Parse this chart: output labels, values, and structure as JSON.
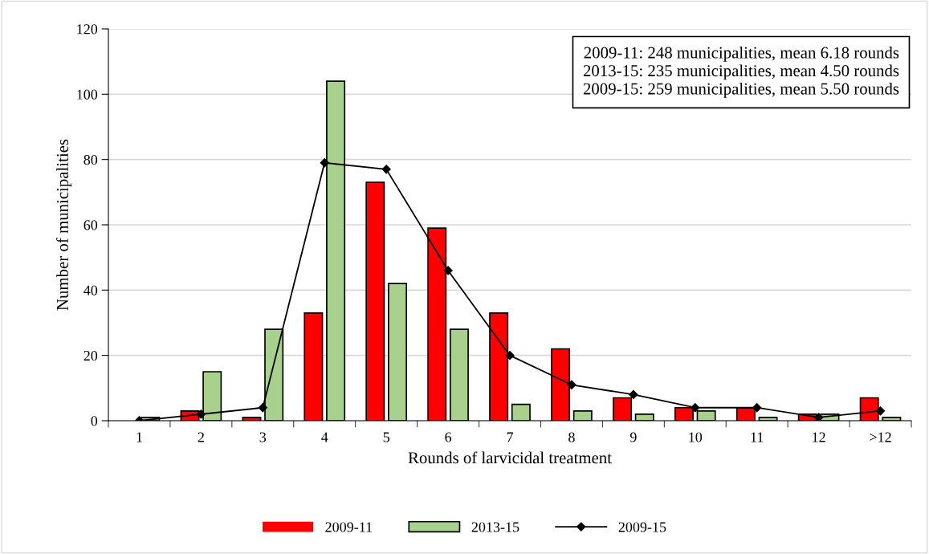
{
  "chart_data": {
    "type": "bar",
    "xlabel": "Rounds of larvicidal treatment",
    "ylabel": "Number of municipalities",
    "categories": [
      "1",
      "2",
      "3",
      "4",
      "5",
      "6",
      "7",
      "8",
      "9",
      "10",
      "11",
      "12",
      ">12"
    ],
    "series": [
      {
        "name": "2009-11",
        "color": "#ff0000",
        "values": [
          0,
          3,
          1,
          33,
          73,
          59,
          33,
          22,
          7,
          4,
          4,
          2,
          7
        ]
      },
      {
        "name": "2013-15",
        "color": "#a9d18e",
        "values": [
          1,
          15,
          28,
          104,
          42,
          28,
          5,
          3,
          2,
          3,
          1,
          2,
          1
        ]
      },
      {
        "name": "2009-15",
        "type": "line",
        "color": "#000000",
        "marker": "diamond",
        "values": [
          0,
          2,
          4,
          79,
          77,
          46,
          20,
          11,
          8,
          4,
          4,
          1,
          3
        ]
      }
    ],
    "ylim": [
      0,
      120
    ],
    "yticks": [
      0,
      20,
      40,
      60,
      80,
      100,
      120
    ],
    "grid": "y",
    "legend": "bottom",
    "annotations": [
      "2009-11: 248 municipalities, mean 6.18 rounds\n2013-15: 235 municipalities, mean 4.50 rounds\n2009-15: 259 municipalities, mean 5.50 rounds"
    ]
  }
}
